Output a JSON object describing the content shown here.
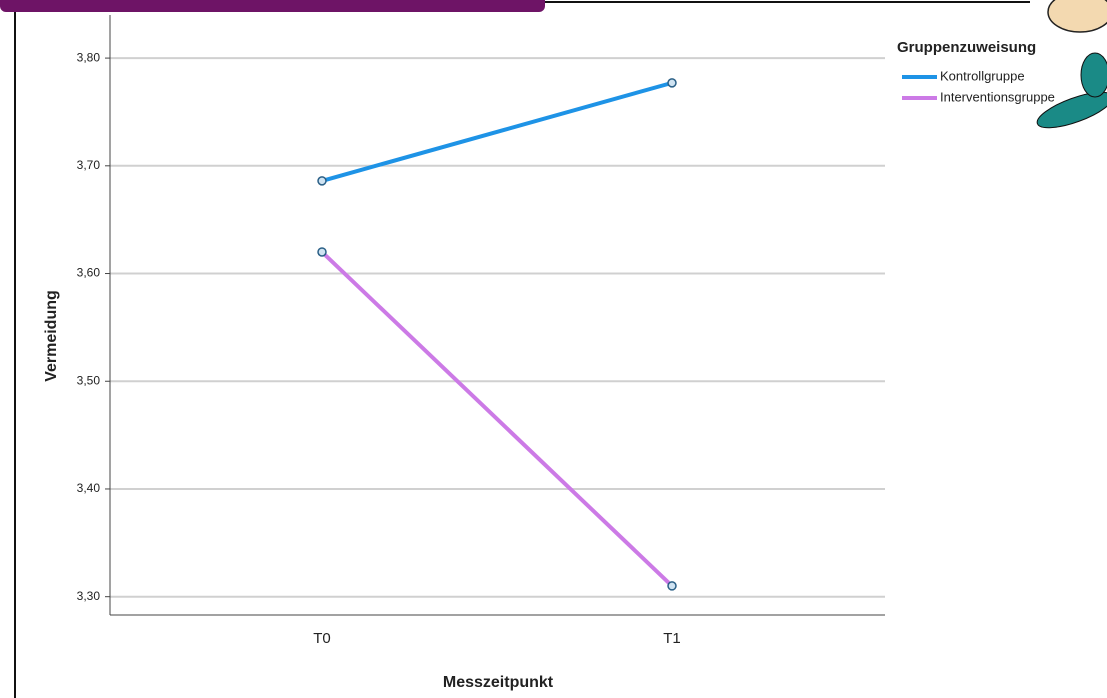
{
  "chart_data": {
    "type": "line",
    "x_label": "Messzeitpunkt",
    "y_label": "Vermeidung",
    "legend_title": "Gruppenzuweisung",
    "legend_position": "right",
    "categories": [
      "T0",
      "T1"
    ],
    "series": [
      {
        "name": "Kontrollgruppe",
        "color": "#1e93e6",
        "values": [
          3.686,
          3.777
        ]
      },
      {
        "name": "Interventionsgruppe",
        "color": "#cc7ae6",
        "values": [
          3.62,
          3.31
        ]
      }
    ],
    "ylim": [
      3.283,
      3.84
    ],
    "yticks": [
      {
        "value": 3.3,
        "label": "3,30"
      },
      {
        "value": 3.4,
        "label": "3,40"
      },
      {
        "value": 3.5,
        "label": "3,50"
      },
      {
        "value": 3.6,
        "label": "3,60"
      },
      {
        "value": 3.7,
        "label": "3,70"
      },
      {
        "value": 3.8,
        "label": "3,80"
      }
    ],
    "grid": true
  }
}
